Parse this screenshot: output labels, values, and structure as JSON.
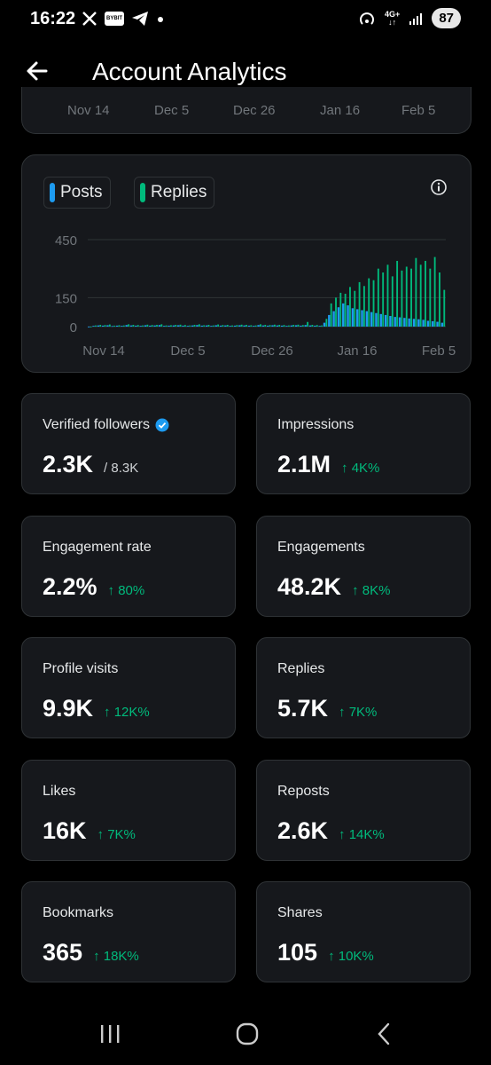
{
  "status_bar": {
    "time": "16:22",
    "network": "4G+",
    "battery": "87",
    "left_icons": [
      "x-icon",
      "bybit-icon",
      "telegram-icon",
      "dot-icon"
    ],
    "bybit_text": "BYBIT"
  },
  "header": {
    "title": "Account Analytics"
  },
  "top_axis": {
    "ticks": [
      "Nov 14",
      "Dec 5",
      "Dec 26",
      "Jan 16",
      "Feb 5"
    ]
  },
  "chart": {
    "legend": [
      {
        "label": "Posts",
        "color": "#1d9bf0"
      },
      {
        "label": "Replies",
        "color": "#00ba7c"
      }
    ]
  },
  "chart_data": {
    "type": "bar",
    "ylim": [
      0,
      450
    ],
    "y_ticks": [
      "450",
      "150",
      "0"
    ],
    "x_ticks": [
      "Nov 14",
      "Dec 5",
      "Dec 26",
      "Jan 16",
      "Feb 5"
    ],
    "grid": true,
    "legend_position": "top-left",
    "series": [
      {
        "name": "Posts",
        "values": [
          0,
          4,
          6,
          5,
          7,
          3,
          5,
          4,
          8,
          6,
          5,
          4,
          7,
          5,
          6,
          8,
          4,
          5,
          6,
          7,
          5,
          4,
          6,
          8,
          5,
          6,
          4,
          7,
          5,
          6,
          4,
          5,
          7,
          6,
          5,
          4,
          8,
          6,
          5,
          7,
          6,
          5,
          4,
          6,
          7,
          5,
          8,
          6,
          5,
          4,
          20,
          60,
          80,
          100,
          120,
          110,
          95,
          90,
          85,
          80,
          75,
          70,
          65,
          60,
          55,
          50,
          48,
          45,
          42,
          40,
          38,
          35,
          30,
          28,
          25,
          20
        ]
      },
      {
        "name": "Replies",
        "values": [
          0,
          6,
          9,
          8,
          11,
          5,
          7,
          6,
          12,
          9,
          8,
          6,
          10,
          8,
          9,
          12,
          6,
          7,
          9,
          10,
          8,
          6,
          9,
          12,
          7,
          9,
          6,
          11,
          8,
          9,
          6,
          8,
          10,
          9,
          7,
          6,
          12,
          9,
          8,
          10,
          9,
          8,
          6,
          9,
          10,
          8,
          24,
          9,
          8,
          6,
          40,
          120,
          150,
          175,
          170,
          205,
          185,
          230,
          210,
          250,
          240,
          300,
          280,
          320,
          260,
          340,
          290,
          310,
          300,
          355,
          320,
          340,
          300,
          360,
          280,
          190
        ]
      }
    ]
  },
  "metrics": [
    {
      "label": "Verified followers",
      "value": "2.3K",
      "sub": "/ 8.3K",
      "change": "",
      "verified_badge": true
    },
    {
      "label": "Impressions",
      "value": "2.1M",
      "sub": "",
      "change": "↑ 4K%"
    },
    {
      "label": "Engagement rate",
      "value": "2.2%",
      "sub": "",
      "change": "↑ 80%"
    },
    {
      "label": "Engagements",
      "value": "48.2K",
      "sub": "",
      "change": "↑ 8K%"
    },
    {
      "label": "Profile visits",
      "value": "9.9K",
      "sub": "",
      "change": "↑ 12K%"
    },
    {
      "label": "Replies",
      "value": "5.7K",
      "sub": "",
      "change": "↑ 7K%"
    },
    {
      "label": "Likes",
      "value": "16K",
      "sub": "",
      "change": "↑ 7K%"
    },
    {
      "label": "Reposts",
      "value": "2.6K",
      "sub": "",
      "change": "↑ 14K%"
    },
    {
      "label": "Bookmarks",
      "value": "365",
      "sub": "",
      "change": "↑ 18K%"
    },
    {
      "label": "Shares",
      "value": "105",
      "sub": "",
      "change": "↑ 10K%"
    }
  ],
  "nav_bar": {
    "buttons": [
      "recents-icon",
      "home-icon",
      "back-icon"
    ]
  },
  "colors": {
    "background": "#000000",
    "card": "#16181c",
    "border": "#2f3336",
    "positive": "#00ba7c",
    "posts": "#1d9bf0",
    "replies": "#00ba7c"
  }
}
